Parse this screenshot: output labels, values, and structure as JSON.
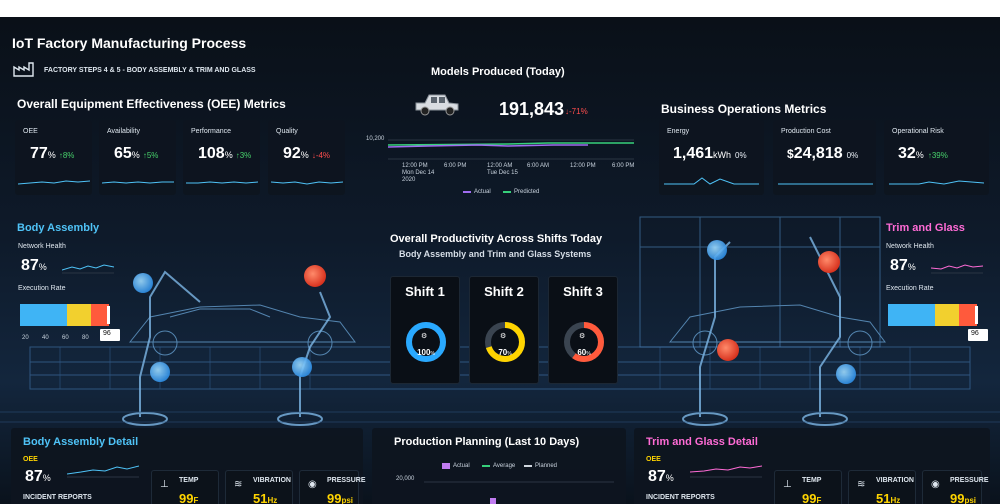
{
  "app": {
    "title": "IoT Factory Manufacturing Process",
    "subtitle": "FACTORY STEPS 4 & 5 - BODY ASSEMBLY & TRIM AND GLASS"
  },
  "oee": {
    "title": "Overall Equipment Effectiveness (OEE) Metrics",
    "metrics": [
      {
        "label": "OEE",
        "value": "77",
        "unit": "%",
        "delta": "8%",
        "trend": "up"
      },
      {
        "label": "Availability",
        "value": "65",
        "unit": "%",
        "delta": "5%",
        "trend": "up"
      },
      {
        "label": "Performance",
        "value": "108",
        "unit": "%",
        "delta": "3%",
        "trend": "up"
      },
      {
        "label": "Quality",
        "value": "92",
        "unit": "%",
        "delta": "-4%",
        "trend": "down"
      }
    ]
  },
  "models": {
    "title": "Models Produced (Today)",
    "value": "191,843",
    "delta": "-71%",
    "y_tick": "10,200",
    "x_ticks": [
      {
        "time": "12:00 PM",
        "date": "Mon Dec 14",
        "year": "2020"
      },
      {
        "time": "6:00 PM",
        "date": "",
        "year": ""
      },
      {
        "time": "12:00 AM",
        "date": "Tue Dec 15",
        "year": ""
      },
      {
        "time": "6:00 AM",
        "date": "",
        "year": ""
      },
      {
        "time": "12:00 PM",
        "date": "",
        "year": ""
      },
      {
        "time": "6:00 PM",
        "date": "",
        "year": ""
      }
    ],
    "legend": [
      {
        "name": "Actual",
        "color": "#a06cf0"
      },
      {
        "name": "Predicted",
        "color": "#36d07a"
      }
    ]
  },
  "business": {
    "title": "Business Operations Metrics",
    "metrics": [
      {
        "label": "Energy",
        "prefix": "",
        "value": "1,461",
        "unit": "kWh",
        "delta": "0%"
      },
      {
        "label": "Production Cost",
        "prefix": "$",
        "value": "24,818",
        "unit": "",
        "delta": "0%"
      },
      {
        "label": "Operational Risk",
        "prefix": "",
        "value": "32",
        "unit": "%",
        "delta": "39%"
      }
    ]
  },
  "body_assembly": {
    "title": "Body Assembly",
    "network_label": "Network Health",
    "network_value": "87",
    "network_unit": "%",
    "execution_label": "Execution Rate",
    "ticks": [
      "20",
      "40",
      "60",
      "80"
    ],
    "marker": "96"
  },
  "trim_glass": {
    "title": "Trim and Glass",
    "network_label": "Network Health",
    "network_value": "87",
    "network_unit": "%",
    "execution_label": "Execution Rate",
    "marker": "96"
  },
  "productivity": {
    "title": "Overall Productivity Across Shifts Today",
    "subtitle": "Body Assembly and Trim and Glass Systems",
    "shifts": [
      {
        "label": "Shift 1",
        "value": "100",
        "unit": "%",
        "percent": 100,
        "color": "#29a9ff"
      },
      {
        "label": "Shift 2",
        "value": "70",
        "unit": "%",
        "percent": 70,
        "color": "#ffd400"
      },
      {
        "label": "Shift 3",
        "value": "60",
        "unit": "%",
        "percent": 60,
        "color": "#ff5a3c"
      }
    ]
  },
  "body_detail": {
    "title": "Body Assembly Detail",
    "oee_label": "OEE",
    "oee_value": "87",
    "oee_unit": "%",
    "incident_label": "INCIDENT REPORTS",
    "temp": {
      "label": "TEMP",
      "value": "99",
      "unit": "F"
    },
    "vibration": {
      "label": "VIBRATION",
      "value": "51",
      "unit": "Hz"
    },
    "pressure": {
      "label": "PRESSURE",
      "value": "99",
      "unit": "psi"
    }
  },
  "planning": {
    "title": "Production Planning (Last 10 Days)",
    "y_tick": "20,000",
    "legend": [
      {
        "name": "Actual",
        "color": "#c07cf0"
      },
      {
        "name": "Average",
        "color": "#36d07a"
      },
      {
        "name": "Planned",
        "color": "#cfd6de"
      }
    ]
  },
  "trim_detail": {
    "title": "Trim and Glass Detail",
    "oee_label": "OEE",
    "oee_value": "87",
    "oee_unit": "%",
    "incident_label": "INCIDENT REPORTS",
    "temp": {
      "label": "TEMP",
      "value": "99",
      "unit": "F"
    },
    "vibration": {
      "label": "VIBRATION",
      "value": "51",
      "unit": "Hz"
    },
    "pressure": {
      "label": "PRESSURE",
      "value": "99",
      "unit": "psi"
    }
  }
}
